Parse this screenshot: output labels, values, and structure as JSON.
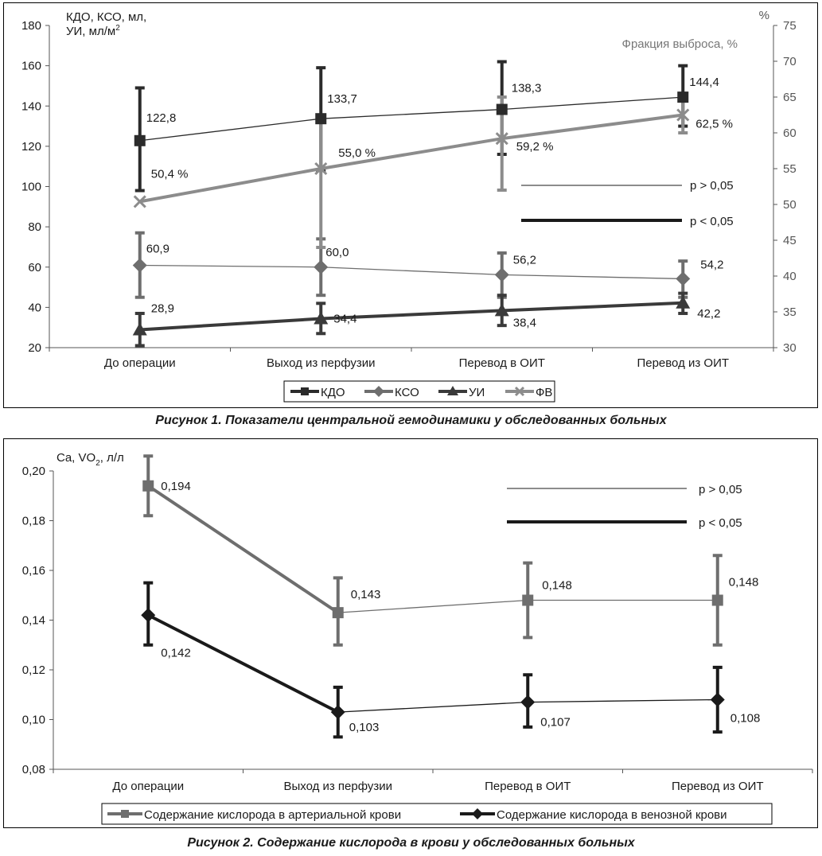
{
  "figure1": {
    "caption": "Рисунок 1.  Показатели центральной гемодинамики у обследованных больных",
    "left_axis_label_line1": "КДО, КСО, мл,",
    "left_axis_label_line2": "УИ, мл/м",
    "left_axis_label_sup": "2",
    "right_axis_unit": "%",
    "right_axis_caption": "Фракция выброса, %",
    "p_gt_label": "p > 0,05",
    "p_lt_label": "p < 0,05"
  },
  "figure2": {
    "caption": "Рисунок 2. Содержание кислорода в крови у обследованных больных",
    "axis_label_prefix": "Ca, VO",
    "axis_label_sub": "2",
    "axis_label_suffix": ", л/л",
    "p_gt_label": "p > 0,05",
    "p_lt_label": "p < 0,05"
  },
  "colors": {
    "kdo": "#2b2b2b",
    "kso": "#6e6e6e",
    "ui": "#3a3a3a",
    "fv": "#8c8c8c",
    "arterial": "#6e6e6e",
    "venous": "#1a1a1a"
  },
  "chart_data": [
    {
      "type": "line",
      "categories": [
        "До операции",
        "Выход из перфузии",
        "Перевод в ОИТ",
        "Перевод из ОИТ"
      ],
      "ylim": [
        20,
        180
      ],
      "yticks": [
        "20",
        "40",
        "60",
        "80",
        "100",
        "120",
        "140",
        "160",
        "180"
      ],
      "y2lim": [
        30,
        75
      ],
      "y2ticks": [
        "30",
        "35",
        "40",
        "45",
        "50",
        "55",
        "60",
        "65",
        "70",
        "75"
      ],
      "legend_position": "bottom",
      "grid": false,
      "series": [
        {
          "name": "КДО",
          "axis": "left",
          "marker": "square",
          "values": [
            122.8,
            133.7,
            138.3,
            144.4
          ],
          "labels": [
            "122,8",
            "133,7",
            "138,3",
            "144,4"
          ],
          "error_low": [
            98,
            108,
            116,
            130
          ],
          "error_high": [
            149,
            159,
            162,
            160
          ]
        },
        {
          "name": "КСО",
          "axis": "left",
          "marker": "diamond",
          "values": [
            60.9,
            60.0,
            56.2,
            54.2
          ],
          "labels": [
            "60,9",
            "60,0",
            "56,2",
            "54,2"
          ],
          "error_low": [
            45,
            46,
            45,
            45
          ],
          "error_high": [
            77,
            74,
            67,
            63
          ]
        },
        {
          "name": "УИ",
          "axis": "left",
          "marker": "triangle",
          "values": [
            28.9,
            34.4,
            38.4,
            42.2
          ],
          "labels": [
            "28,9",
            "34,4",
            "38,4",
            "42,2"
          ],
          "error_low": [
            21,
            27,
            31,
            37
          ],
          "error_high": [
            37,
            42,
            46,
            47
          ]
        },
        {
          "name": "ФВ",
          "axis": "right",
          "marker": "x",
          "values": [
            50.4,
            55.0,
            59.2,
            62.5
          ],
          "labels": [
            "50,4 %",
            "55,0 %",
            "59,2 %",
            "62,5 %"
          ],
          "error_low": [
            null,
            44,
            52,
            60
          ],
          "error_high": [
            null,
            62,
            65,
            65
          ]
        }
      ],
      "segments_significant": {
        "КДО": [
          false,
          false,
          false
        ],
        "КСО": [
          false,
          false,
          false
        ],
        "УИ": [
          true,
          true,
          true
        ],
        "ФВ": [
          true,
          true,
          true
        ]
      }
    },
    {
      "type": "line",
      "categories": [
        "До операции",
        "Выход из перфузии",
        "Перевод в ОИТ",
        "Перевод из ОИТ"
      ],
      "ylim": [
        0.08,
        0.2
      ],
      "yticks": [
        "0,08",
        "0,10",
        "0,12",
        "0,14",
        "0,16",
        "0,18",
        "0,20"
      ],
      "legend_position": "bottom",
      "grid": false,
      "series": [
        {
          "name": "Содержание кислорода в артериальной крови",
          "marker": "square",
          "values": [
            0.194,
            0.143,
            0.148,
            0.148
          ],
          "labels": [
            "0,194",
            "0,143",
            "0,148",
            "0,148"
          ],
          "error_low": [
            0.182,
            0.13,
            0.133,
            0.13
          ],
          "error_high": [
            0.206,
            0.157,
            0.163,
            0.166
          ]
        },
        {
          "name": "Содержание кислорода в венозной крови",
          "marker": "diamond",
          "values": [
            0.142,
            0.103,
            0.107,
            0.108
          ],
          "labels": [
            "0,142",
            "0,103",
            "0,107",
            "0,108"
          ],
          "error_low": [
            0.13,
            0.093,
            0.097,
            0.095
          ],
          "error_high": [
            0.155,
            0.113,
            0.118,
            0.121
          ]
        }
      ],
      "segments_significant": {
        "Содержание кислорода в артериальной крови": [
          true,
          false,
          false
        ],
        "Содержание кислорода в венозной крови": [
          true,
          false,
          false
        ]
      }
    }
  ]
}
